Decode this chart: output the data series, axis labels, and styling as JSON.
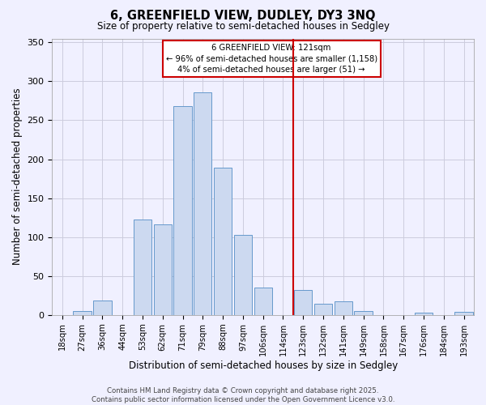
{
  "title": "6, GREENFIELD VIEW, DUDLEY, DY3 3NQ",
  "subtitle": "Size of property relative to semi-detached houses in Sedgley",
  "xlabel": "Distribution of semi-detached houses by size in Sedgley",
  "ylabel": "Number of semi-detached properties",
  "bin_labels": [
    "18sqm",
    "27sqm",
    "36sqm",
    "44sqm",
    "53sqm",
    "62sqm",
    "71sqm",
    "79sqm",
    "88sqm",
    "97sqm",
    "106sqm",
    "114sqm",
    "123sqm",
    "132sqm",
    "141sqm",
    "149sqm",
    "158sqm",
    "167sqm",
    "176sqm",
    "184sqm",
    "193sqm"
  ],
  "bar_heights": [
    0,
    5,
    19,
    0,
    123,
    116,
    268,
    286,
    189,
    103,
    35,
    0,
    32,
    14,
    18,
    5,
    0,
    0,
    3,
    0,
    4
  ],
  "bar_color": "#ccd9f0",
  "bar_edge_color": "#6699cc",
  "property_line_idx": 12,
  "property_line_color": "#cc0000",
  "annotation_text_line1": "6 GREENFIELD VIEW: 121sqm",
  "annotation_text_line2": "← 96% of semi-detached houses are smaller (1,158)",
  "annotation_text_line3": "4% of semi-detached houses are larger (51) →",
  "ylim": [
    0,
    355
  ],
  "yticks": [
    0,
    50,
    100,
    150,
    200,
    250,
    300,
    350
  ],
  "footer_text": "Contains HM Land Registry data © Crown copyright and database right 2025.\nContains public sector information licensed under the Open Government Licence v3.0.",
  "background_color": "#f0f0ff",
  "grid_color": "#ccccdd"
}
